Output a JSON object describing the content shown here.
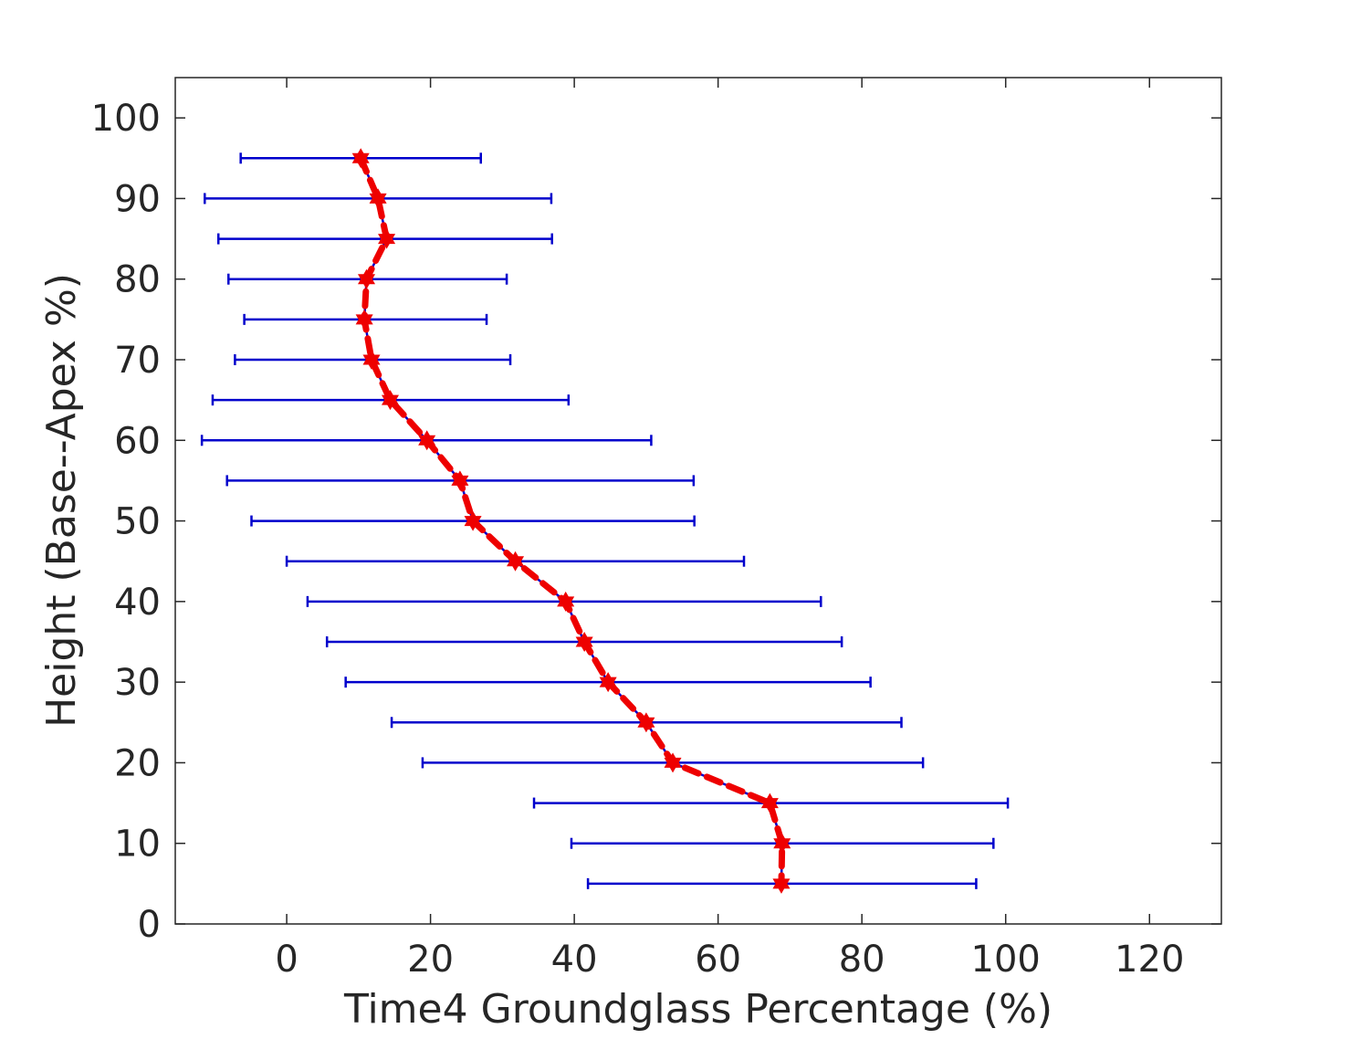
{
  "chart_data": {
    "type": "line",
    "xlabel": "Time4 Groundglass Percentage (%)",
    "ylabel": "Height (Base--Apex %)",
    "xlim": [
      -15.5,
      130
    ],
    "ylim": [
      0,
      105
    ],
    "xticks": [
      0,
      20,
      40,
      60,
      80,
      100,
      120
    ],
    "yticks": [
      0,
      10,
      20,
      30,
      40,
      50,
      60,
      70,
      80,
      90,
      100
    ],
    "grid": false,
    "box": true,
    "series": [
      {
        "y": [
          95,
          90,
          85,
          80,
          75,
          70,
          65,
          60,
          55,
          50,
          45,
          40,
          35,
          30,
          25,
          20,
          15,
          10,
          5
        ],
        "x": [
          10.3,
          12.7,
          13.9,
          11.1,
          10.8,
          11.8,
          14.4,
          19.5,
          24.1,
          25.9,
          31.8,
          38.8,
          41.4,
          44.7,
          50.0,
          53.7,
          67.2,
          68.9,
          68.8
        ],
        "xerr_low": [
          -6.4,
          -11.4,
          -9.5,
          -8.1,
          -5.9,
          -7.2,
          -10.3,
          -11.8,
          -8.3,
          -4.9,
          0.0,
          2.9,
          5.6,
          8.2,
          14.6,
          18.9,
          34.4,
          39.6,
          41.9
        ],
        "xerr_high": [
          27.0,
          36.8,
          36.9,
          30.6,
          27.8,
          31.1,
          39.2,
          50.7,
          56.6,
          56.7,
          63.6,
          74.3,
          77.2,
          81.2,
          85.5,
          88.5,
          100.3,
          98.3,
          95.9
        ],
        "line_color": "#0000cc",
        "errorbar_color": "#0000cc",
        "overlay_color": "#ee0000",
        "marker": "hexagram"
      }
    ]
  }
}
